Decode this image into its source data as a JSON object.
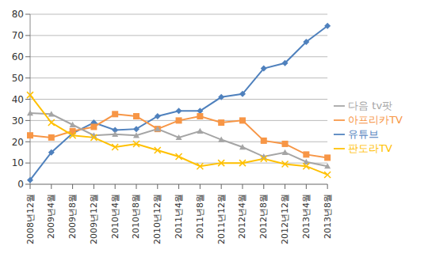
{
  "chart_data": {
    "type": "line",
    "categories": [
      "2008년12월",
      "2009년4월",
      "2009년8월",
      "2009년12월",
      "2010년4월",
      "2010년8월",
      "2010년12월",
      "2011년4월",
      "2011년8월",
      "2011년12월",
      "2012년4월",
      "2012년8월",
      "2012년12월",
      "2013년4월",
      "2013년8월"
    ],
    "series": [
      {
        "name": "유튜브",
        "color": "#4F81BD",
        "marker": "diamond",
        "values": [
          2,
          15,
          24,
          29,
          25.5,
          26,
          32,
          34.5,
          34.5,
          41,
          42.5,
          54.5,
          57,
          67,
          74.5
        ]
      },
      {
        "name": "아프리카TV",
        "color": "#F79646",
        "marker": "square",
        "values": [
          23,
          22,
          25,
          27,
          33,
          32,
          26,
          30,
          32,
          29,
          30,
          20.5,
          19,
          14,
          12.5
        ]
      },
      {
        "name": "다음 tv팟",
        "color": "#A5A5A5",
        "marker": "triangle",
        "values": [
          33.5,
          33,
          28,
          23,
          23.5,
          23,
          26,
          22,
          25,
          21,
          17.5,
          13,
          15,
          10.5,
          8.5
        ]
      },
      {
        "name": "판도라TV",
        "color": "#FFC000",
        "marker": "x",
        "values": [
          42,
          29,
          23,
          22,
          17.5,
          19,
          16,
          13,
          8.5,
          10,
          10,
          12,
          9.5,
          8.5,
          4.5
        ]
      }
    ],
    "ylim": [
      0,
      80
    ],
    "yticks": [
      0,
      10,
      20,
      30,
      40,
      50,
      60,
      70,
      80
    ],
    "grid": true,
    "legend": "right"
  }
}
